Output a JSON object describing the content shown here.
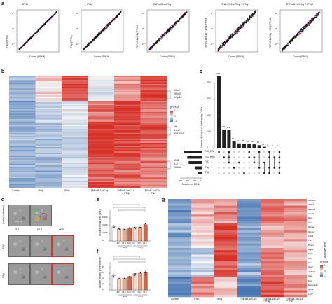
{
  "panels": {
    "a": {
      "letter": "a",
      "scatters": [
        {
          "title": "IFNβ",
          "ylabel": "IFNβ (FPKM)",
          "xlabel": "Control (FPKM)"
        },
        {
          "title": "IFNγ",
          "ylabel": "IFNγ (FPKM)",
          "xlabel": "Control (FPKM)"
        },
        {
          "title": "TNFα/IL1α/C1q",
          "ylabel": "TNFα/IL1α/C1q (FPKM)",
          "xlabel": "Control (FPKM)"
        },
        {
          "title": "TNFα/IL1α/C1q + IFNγ",
          "ylabel": "TNFα/IL1α/C1q + IFNγ (FPKM)",
          "xlabel": "Control (FPKM)"
        },
        {
          "title": "TNFα/IL1α/C1q + IFNβ",
          "ylabel": "TNFα/IL1α/C1q + IFNβ (FPKM)",
          "xlabel": "Control (FPKM)"
        }
      ],
      "ticks": [
        "2⁵",
        "2⁰",
        "2⁻⁵"
      ]
    },
    "b": {
      "letter": "b",
      "gene_groups": [
        [
          "Oasl",
          "Ifitm3",
          "Usp18"
        ],
        [
          "Il6",
          "Lcn2",
          "Rt1-Db1"
        ],
        [
          "Cd1",
          "C3",
          "Nfkbia"
        ]
      ],
      "legend_title": "pFPKM",
      "legend_ticks": [
        "1",
        "0",
        "-1"
      ],
      "columns": [
        "Control",
        "IFNβ",
        "IFNγ",
        "TNFα/IL1α/C1q",
        "TNFα/IL1α/C1q\n+ IFNβ",
        "TNFα/IL1α/C1q\n+ IFNγ"
      ]
    },
    "c": {
      "letter": "c",
      "ylabel": "Number of unique or overlapping DEGs",
      "yticks": [
        "400",
        "300",
        "200",
        "100",
        "0"
      ],
      "bar_labels": [
        "443",
        "115",
        "112",
        "45",
        "31",
        "29",
        "26",
        "25",
        "20",
        "10",
        "3",
        "2",
        "1"
      ],
      "set_labels": [
        "T/IC_IFNγ",
        "T/IC_IFNβ",
        "T/IC",
        "IFNγ",
        "IFNβ"
      ],
      "xlabel": "Number of DEGs",
      "xticks": [
        "900",
        "600",
        "300",
        "0"
      ]
    },
    "d": {
      "letter": "d",
      "row_labels": [
        "Control (untreated)",
        "IFNβ",
        "IFNγ"
      ],
      "col_labels": [
        "3 h",
        "24 h",
        "72 h"
      ],
      "scale": "100 μm"
    },
    "e": {
      "letter": "e",
      "ylabel": "Cross-sectional area (μm²)",
      "yticks": [
        "0",
        "2,000",
        "4,000",
        "6,000"
      ],
      "xticks": [
        "3 h",
        "24 h",
        "72 h",
        "3 h",
        "24 h",
        "72 h"
      ],
      "groups": [
        "IFNβ",
        "IFNγ"
      ],
      "first": "",
      "values": [
        3800,
        3100,
        3000,
        3300,
        3500,
        3600,
        4200
      ]
    },
    "f": {
      "letter": "f",
      "ylabel": "Number primary processes/cell",
      "yticks": [
        "0",
        "2",
        "4",
        "6",
        "8"
      ],
      "xticks": [
        "3 h",
        "24 h",
        "72 h",
        "3 h",
        "24 h",
        "72 h"
      ],
      "groups": [
        "IFNβ",
        "IFNγ"
      ],
      "values": [
        5.2,
        4.0,
        4.2,
        4.8,
        5.8,
        6.0,
        6.2
      ]
    },
    "g": {
      "letter": "g",
      "columns": [
        "Control",
        "IFNβ",
        "IFNγ",
        "TNFα/IL1α/C1q",
        "TNFα/IL1α/C1q\n+ IFNβ",
        "TNFα/IL1α/C1q\n+ IFNγ"
      ],
      "genes": [
        "Slc6a11",
        "Thbs4",
        "Spock3",
        "Glud1",
        "Rxrg",
        "Rxra",
        "Slc1a2",
        "Slc1a3",
        "Cd44",
        "Tnc",
        "Postn",
        "Aqp4",
        "Gfap",
        "Vim",
        "Nes",
        "Sox2",
        "Aldh1l1",
        "Gja1",
        "Myc",
        "Serpina3n",
        "Ifitm3",
        "Lcn2"
      ],
      "group_label": "Astrocyte gene",
      "legend_title": "pFPKM",
      "legend_ticks": [
        "1",
        "0",
        "-1"
      ]
    }
  },
  "colors": {
    "pink": "#e056b7",
    "black": "#111111",
    "red": "#d73027",
    "blue": "#4575b4"
  }
}
